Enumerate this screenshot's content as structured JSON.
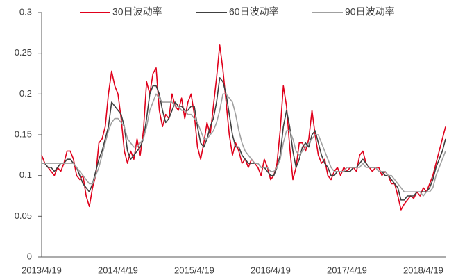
{
  "chart_data": {
    "type": "line",
    "categories": [
      "2013/4/19",
      null,
      null,
      null,
      null,
      null,
      null,
      null,
      null,
      null,
      null,
      null,
      null,
      null,
      null,
      null,
      null,
      null,
      null,
      null,
      null,
      null,
      null,
      null,
      "2014/4/19",
      null,
      null,
      null,
      null,
      null,
      null,
      null,
      null,
      null,
      null,
      null,
      null,
      null,
      null,
      null,
      null,
      null,
      null,
      null,
      null,
      null,
      null,
      null,
      "2015/4/19",
      null,
      null,
      null,
      null,
      null,
      null,
      null,
      null,
      null,
      null,
      null,
      null,
      null,
      null,
      null,
      null,
      null,
      null,
      null,
      null,
      null,
      null,
      null,
      "2016/4/19",
      null,
      null,
      null,
      null,
      null,
      null,
      null,
      null,
      null,
      null,
      null,
      null,
      null,
      null,
      null,
      null,
      null,
      null,
      null,
      null,
      null,
      null,
      null,
      "2017/4/19",
      null,
      null,
      null,
      null,
      null,
      null,
      null,
      null,
      null,
      null,
      null,
      null,
      null,
      null,
      null,
      null,
      null,
      null,
      null,
      null,
      null,
      null,
      null,
      "2018/4/19",
      null,
      null,
      null,
      null,
      null,
      null,
      null
    ],
    "series": [
      {
        "name": "30日波动率",
        "color": "#e0001b",
        "values": [
          0.125,
          0.115,
          0.11,
          0.105,
          0.1,
          0.11,
          0.105,
          0.115,
          0.13,
          0.13,
          0.12,
          0.1,
          0.095,
          0.1,
          0.075,
          0.062,
          0.085,
          0.1,
          0.14,
          0.145,
          0.16,
          0.2,
          0.228,
          0.21,
          0.2,
          0.17,
          0.13,
          0.115,
          0.13,
          0.12,
          0.145,
          0.125,
          0.155,
          0.215,
          0.2,
          0.225,
          0.232,
          0.18,
          0.16,
          0.175,
          0.17,
          0.2,
          0.185,
          0.18,
          0.195,
          0.17,
          0.19,
          0.2,
          0.175,
          0.135,
          0.12,
          0.14,
          0.165,
          0.15,
          0.185,
          0.22,
          0.26,
          0.23,
          0.19,
          0.15,
          0.125,
          0.14,
          0.13,
          0.115,
          0.12,
          0.11,
          0.12,
          0.115,
          0.11,
          0.1,
          0.12,
          0.11,
          0.095,
          0.1,
          0.115,
          0.155,
          0.21,
          0.185,
          0.135,
          0.095,
          0.11,
          0.14,
          0.14,
          0.13,
          0.145,
          0.18,
          0.15,
          0.125,
          0.115,
          0.12,
          0.1,
          0.095,
          0.105,
          0.11,
          0.1,
          0.11,
          0.105,
          0.11,
          0.11,
          0.105,
          0.125,
          0.13,
          0.115,
          0.11,
          0.105,
          0.11,
          0.11,
          0.1,
          0.105,
          0.1,
          0.09,
          0.09,
          0.075,
          0.058,
          0.065,
          0.07,
          0.075,
          0.072,
          0.08,
          0.075,
          0.085,
          0.08,
          0.09,
          0.1,
          0.115,
          0.13,
          0.145,
          0.16
        ]
      },
      {
        "name": "60日波动率",
        "color": "#404040",
        "values": [
          0.115,
          0.115,
          0.11,
          0.11,
          0.105,
          0.11,
          0.115,
          0.115,
          0.12,
          0.12,
          0.115,
          0.11,
          0.1,
          0.09,
          0.085,
          0.08,
          0.09,
          0.105,
          0.12,
          0.13,
          0.145,
          0.16,
          0.19,
          0.185,
          0.18,
          0.175,
          0.16,
          0.13,
          0.12,
          0.125,
          0.13,
          0.135,
          0.145,
          0.17,
          0.2,
          0.21,
          0.21,
          0.2,
          0.18,
          0.165,
          0.17,
          0.18,
          0.19,
          0.185,
          0.185,
          0.18,
          0.18,
          0.185,
          0.185,
          0.16,
          0.14,
          0.135,
          0.145,
          0.16,
          0.17,
          0.19,
          0.22,
          0.215,
          0.2,
          0.175,
          0.15,
          0.135,
          0.135,
          0.125,
          0.12,
          0.115,
          0.115,
          0.115,
          0.115,
          0.11,
          0.11,
          0.105,
          0.1,
          0.1,
          0.11,
          0.125,
          0.16,
          0.18,
          0.16,
          0.13,
          0.11,
          0.12,
          0.135,
          0.14,
          0.135,
          0.15,
          0.155,
          0.14,
          0.125,
          0.115,
          0.11,
          0.1,
          0.1,
          0.105,
          0.105,
          0.105,
          0.105,
          0.105,
          0.11,
          0.11,
          0.115,
          0.12,
          0.115,
          0.11,
          0.11,
          0.11,
          0.105,
          0.105,
          0.1,
          0.1,
          0.095,
          0.09,
          0.085,
          0.07,
          0.07,
          0.075,
          0.075,
          0.075,
          0.08,
          0.08,
          0.08,
          0.08,
          0.085,
          0.095,
          0.11,
          0.12,
          0.13,
          0.145
        ]
      },
      {
        "name": "90日波动率",
        "color": "#a0a0a0",
        "values": [
          0.115,
          0.115,
          0.115,
          0.115,
          0.115,
          0.115,
          0.115,
          0.115,
          0.115,
          0.115,
          0.115,
          0.11,
          0.105,
          0.1,
          0.095,
          0.09,
          0.09,
          0.1,
          0.11,
          0.125,
          0.14,
          0.155,
          0.165,
          0.17,
          0.17,
          0.165,
          0.16,
          0.145,
          0.14,
          0.135,
          0.135,
          0.14,
          0.145,
          0.16,
          0.18,
          0.19,
          0.2,
          0.195,
          0.19,
          0.19,
          0.19,
          0.19,
          0.185,
          0.185,
          0.18,
          0.18,
          0.175,
          0.175,
          0.17,
          0.165,
          0.155,
          0.145,
          0.145,
          0.15,
          0.155,
          0.165,
          0.18,
          0.2,
          0.2,
          0.195,
          0.19,
          0.175,
          0.155,
          0.14,
          0.13,
          0.125,
          0.12,
          0.115,
          0.115,
          0.11,
          0.11,
          0.11,
          0.105,
          0.105,
          0.11,
          0.12,
          0.14,
          0.155,
          0.155,
          0.145,
          0.13,
          0.125,
          0.13,
          0.135,
          0.14,
          0.145,
          0.15,
          0.15,
          0.14,
          0.13,
          0.12,
          0.11,
          0.105,
          0.105,
          0.105,
          0.105,
          0.11,
          0.11,
          0.11,
          0.11,
          0.11,
          0.115,
          0.11,
          0.11,
          0.11,
          0.11,
          0.105,
          0.105,
          0.105,
          0.1,
          0.1,
          0.095,
          0.09,
          0.085,
          0.08,
          0.08,
          0.08,
          0.08,
          0.08,
          0.08,
          0.075,
          0.08,
          0.08,
          0.085,
          0.1,
          0.11,
          0.12,
          0.13
        ]
      }
    ],
    "ylim": [
      0,
      0.3
    ],
    "yticks": [
      0,
      0.05,
      0.1,
      0.15,
      0.2,
      0.25,
      0.3
    ],
    "grid": false,
    "legend": "top"
  }
}
